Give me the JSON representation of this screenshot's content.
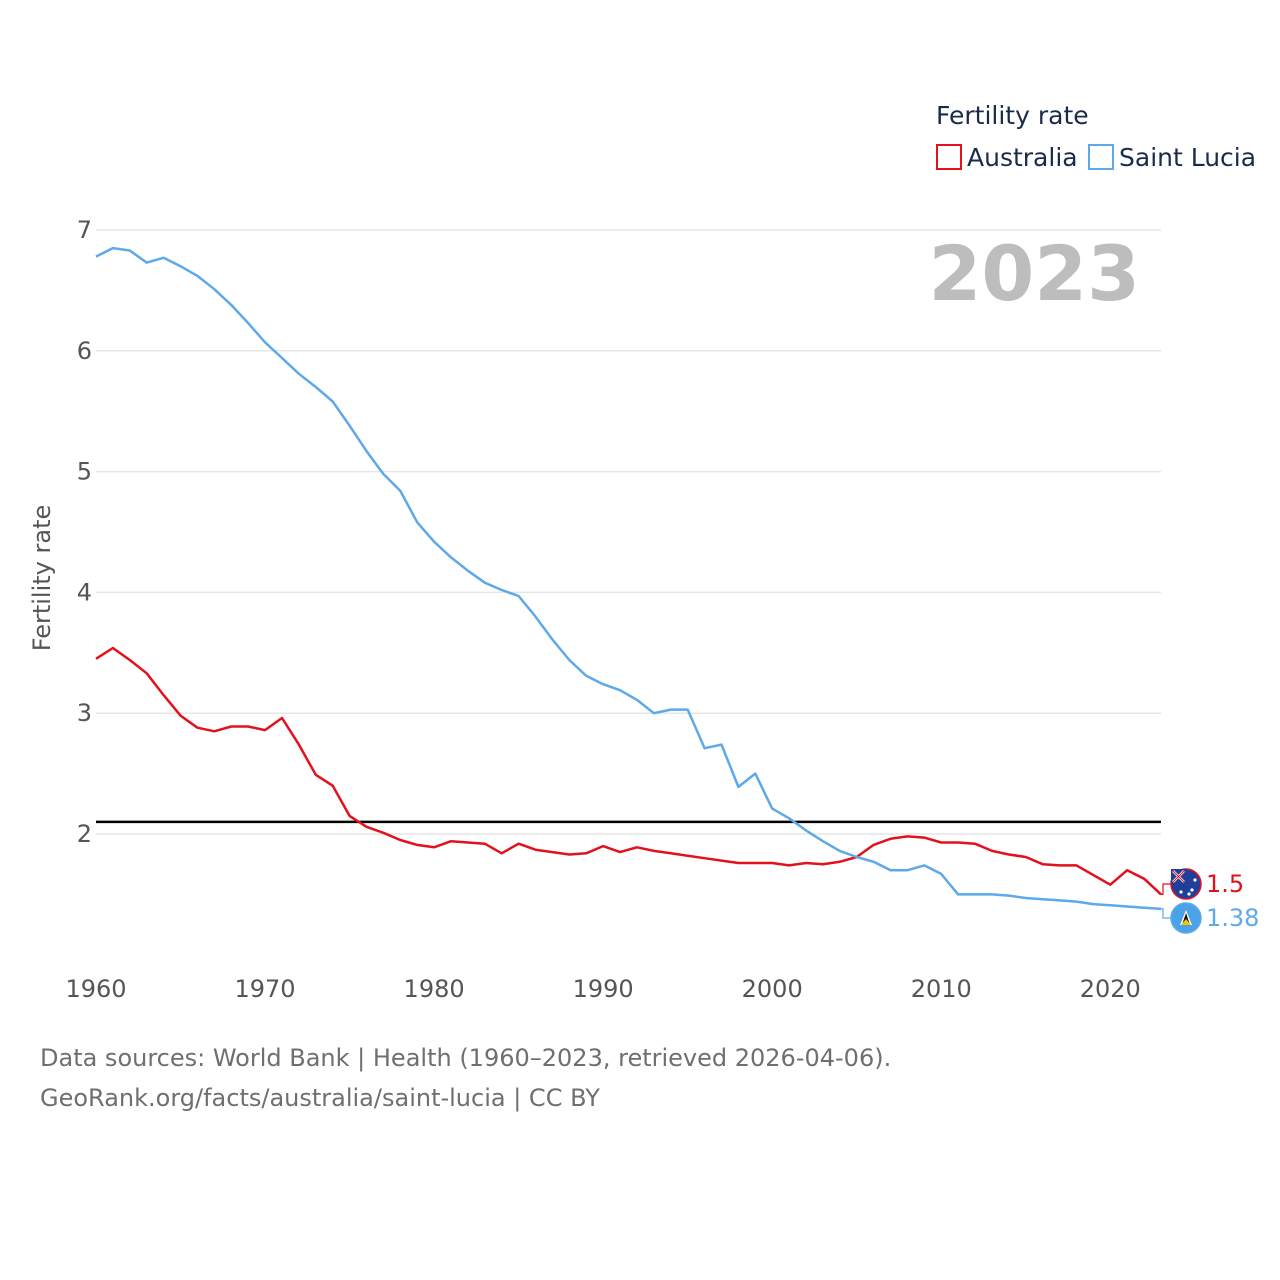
{
  "chart_data": {
    "type": "line",
    "title": "",
    "ylabel": "Fertility rate",
    "xlabel": "",
    "xlim": [
      1960,
      2023
    ],
    "ylim": [
      1,
      7.2
    ],
    "yticks": [
      2,
      3,
      4,
      5,
      6,
      7
    ],
    "xticks": [
      1960,
      1970,
      1980,
      1990,
      2000,
      2010,
      2020
    ],
    "current_year": "2023",
    "reference_line": 2.1,
    "legend": {
      "title": "Fertility rate",
      "position": "top-right"
    },
    "series": [
      {
        "name": "Australia",
        "color": "#e3111b",
        "end_label": "1.5",
        "flag": "australia-flag",
        "values": [
          [
            1960,
            3.45
          ],
          [
            1961,
            3.54
          ],
          [
            1962,
            3.44
          ],
          [
            1963,
            3.33
          ],
          [
            1964,
            3.15
          ],
          [
            1965,
            2.98
          ],
          [
            1966,
            2.88
          ],
          [
            1967,
            2.85
          ],
          [
            1968,
            2.89
          ],
          [
            1969,
            2.89
          ],
          [
            1970,
            2.86
          ],
          [
            1971,
            2.96
          ],
          [
            1972,
            2.74
          ],
          [
            1973,
            2.49
          ],
          [
            1974,
            2.4
          ],
          [
            1975,
            2.15
          ],
          [
            1976,
            2.06
          ],
          [
            1977,
            2.01
          ],
          [
            1978,
            1.95
          ],
          [
            1979,
            1.91
          ],
          [
            1980,
            1.89
          ],
          [
            1981,
            1.94
          ],
          [
            1982,
            1.93
          ],
          [
            1983,
            1.92
          ],
          [
            1984,
            1.84
          ],
          [
            1985,
            1.92
          ],
          [
            1986,
            1.87
          ],
          [
            1987,
            1.85
          ],
          [
            1988,
            1.83
          ],
          [
            1989,
            1.84
          ],
          [
            1990,
            1.9
          ],
          [
            1991,
            1.85
          ],
          [
            1992,
            1.89
          ],
          [
            1993,
            1.86
          ],
          [
            1994,
            1.84
          ],
          [
            1995,
            1.82
          ],
          [
            1996,
            1.8
          ],
          [
            1997,
            1.78
          ],
          [
            1998,
            1.76
          ],
          [
            1999,
            1.76
          ],
          [
            2000,
            1.76
          ],
          [
            2001,
            1.74
          ],
          [
            2002,
            1.76
          ],
          [
            2003,
            1.75
          ],
          [
            2004,
            1.77
          ],
          [
            2005,
            1.81
          ],
          [
            2006,
            1.91
          ],
          [
            2007,
            1.96
          ],
          [
            2008,
            1.98
          ],
          [
            2009,
            1.97
          ],
          [
            2010,
            1.93
          ],
          [
            2011,
            1.93
          ],
          [
            2012,
            1.92
          ],
          [
            2013,
            1.86
          ],
          [
            2014,
            1.83
          ],
          [
            2015,
            1.81
          ],
          [
            2016,
            1.75
          ],
          [
            2017,
            1.74
          ],
          [
            2018,
            1.74
          ],
          [
            2019,
            1.66
          ],
          [
            2020,
            1.58
          ],
          [
            2021,
            1.7
          ],
          [
            2022,
            1.63
          ],
          [
            2023,
            1.5
          ]
        ]
      },
      {
        "name": "Saint Lucia",
        "color": "#5da9e9",
        "end_label": "1.38",
        "flag": "saint-lucia-flag",
        "values": [
          [
            1960,
            6.78
          ],
          [
            1961,
            6.85
          ],
          [
            1962,
            6.83
          ],
          [
            1963,
            6.73
          ],
          [
            1964,
            6.77
          ],
          [
            1965,
            6.7
          ],
          [
            1966,
            6.62
          ],
          [
            1967,
            6.51
          ],
          [
            1968,
            6.38
          ],
          [
            1969,
            6.23
          ],
          [
            1970,
            6.07
          ],
          [
            1971,
            5.94
          ],
          [
            1972,
            5.81
          ],
          [
            1973,
            5.7
          ],
          [
            1974,
            5.58
          ],
          [
            1975,
            5.38
          ],
          [
            1976,
            5.17
          ],
          [
            1977,
            4.98
          ],
          [
            1978,
            4.84
          ],
          [
            1979,
            4.58
          ],
          [
            1980,
            4.42
          ],
          [
            1981,
            4.29
          ],
          [
            1982,
            4.18
          ],
          [
            1983,
            4.08
          ],
          [
            1984,
            4.02
          ],
          [
            1985,
            3.97
          ],
          [
            1986,
            3.8
          ],
          [
            1987,
            3.61
          ],
          [
            1988,
            3.44
          ],
          [
            1989,
            3.31
          ],
          [
            1990,
            3.24
          ],
          [
            1991,
            3.19
          ],
          [
            1992,
            3.11
          ],
          [
            1993,
            3.0
          ],
          [
            1994,
            3.03
          ],
          [
            1995,
            3.03
          ],
          [
            1996,
            2.71
          ],
          [
            1997,
            2.74
          ],
          [
            1998,
            2.39
          ],
          [
            1999,
            2.5
          ],
          [
            2000,
            2.21
          ],
          [
            2001,
            2.13
          ],
          [
            2002,
            2.03
          ],
          [
            2003,
            1.94
          ],
          [
            2004,
            1.86
          ],
          [
            2005,
            1.81
          ],
          [
            2006,
            1.77
          ],
          [
            2007,
            1.7
          ],
          [
            2008,
            1.7
          ],
          [
            2009,
            1.74
          ],
          [
            2010,
            1.67
          ],
          [
            2011,
            1.5
          ],
          [
            2012,
            1.5
          ],
          [
            2013,
            1.5
          ],
          [
            2014,
            1.49
          ],
          [
            2015,
            1.47
          ],
          [
            2016,
            1.46
          ],
          [
            2017,
            1.45
          ],
          [
            2018,
            1.44
          ],
          [
            2019,
            1.42
          ],
          [
            2020,
            1.41
          ],
          [
            2021,
            1.4
          ],
          [
            2022,
            1.39
          ],
          [
            2023,
            1.38
          ]
        ]
      }
    ]
  },
  "footer": {
    "line1": "Data sources: World Bank | Health (1960–2023, retrieved 2026-04-06).",
    "line2": "GeoRank.org/facts/australia/saint-lucia | CC BY"
  }
}
